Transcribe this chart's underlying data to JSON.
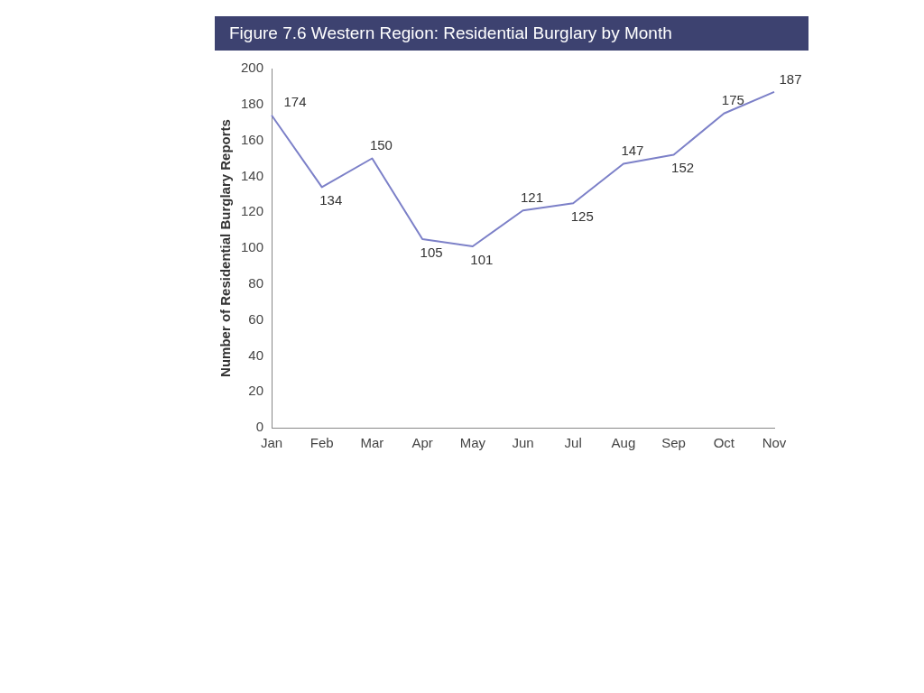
{
  "chart_data": {
    "type": "line",
    "title": "Figure 7.6  Western Region: Residential Burglary by Month",
    "ylabel": "Number of Residential Burglary Reports",
    "categories": [
      "Jan",
      "Feb",
      "Mar",
      "Apr",
      "May",
      "Jun",
      "Jul",
      "Aug",
      "Sep",
      "Oct",
      "Nov"
    ],
    "series": [
      {
        "color": "#7c80c8",
        "values": [
          174,
          134,
          150,
          105,
          101,
          121,
          125,
          147,
          152,
          175,
          187
        ]
      }
    ],
    "ylim": [
      0,
      200
    ],
    "yticks": [
      0,
      20,
      40,
      60,
      80,
      100,
      120,
      140,
      160,
      180,
      200
    ],
    "grid": false,
    "legend": false,
    "marker": "none",
    "line_style": "solid",
    "data_labels": true
  }
}
